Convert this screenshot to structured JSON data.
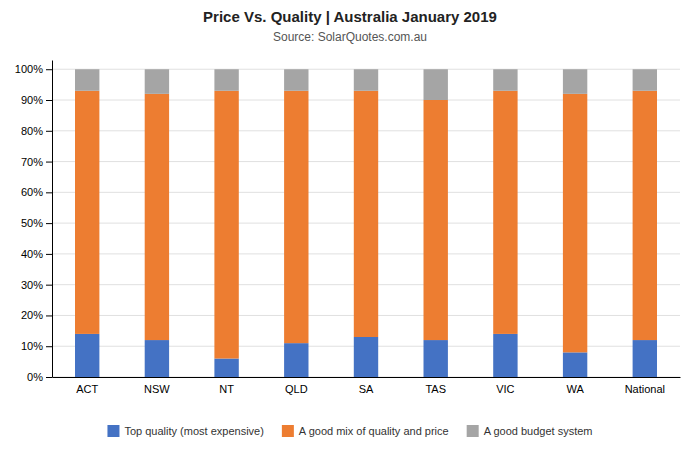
{
  "chart_data": {
    "type": "bar",
    "stacked": true,
    "title": "Price Vs. Quality | Australia January 2019",
    "subtitle": "Source: SolarQuotes.com.au",
    "categories": [
      "ACT",
      "NSW",
      "NT",
      "QLD",
      "SA",
      "TAS",
      "VIC",
      "WA",
      "National"
    ],
    "series": [
      {
        "name": "Top quality (most expensive)",
        "color": "#4472C4",
        "values": [
          14,
          12,
          6,
          11,
          13,
          12,
          14,
          8,
          12
        ]
      },
      {
        "name": "A good mix of quality and price",
        "color": "#ED7D31",
        "values": [
          79,
          80,
          87,
          82,
          80,
          78,
          79,
          84,
          81
        ]
      },
      {
        "name": "A good budget system",
        "color": "#A5A5A5",
        "values": [
          7,
          8,
          7,
          7,
          7,
          10,
          7,
          8,
          7
        ]
      }
    ],
    "ylim": [
      0,
      103
    ],
    "yticks": [
      {
        "value": 0,
        "label": "0%"
      },
      {
        "value": 10,
        "label": "10%"
      },
      {
        "value": 20,
        "label": "20%"
      },
      {
        "value": 30,
        "label": "30%"
      },
      {
        "value": 40,
        "label": "40%"
      },
      {
        "value": 50,
        "label": "50%"
      },
      {
        "value": 60,
        "label": "60%"
      },
      {
        "value": 70,
        "label": "70%"
      },
      {
        "value": 80,
        "label": "80%"
      },
      {
        "value": 90,
        "label": "90%"
      },
      {
        "value": 100,
        "label": "100%"
      }
    ],
    "grid": true,
    "legend": "bottom"
  }
}
